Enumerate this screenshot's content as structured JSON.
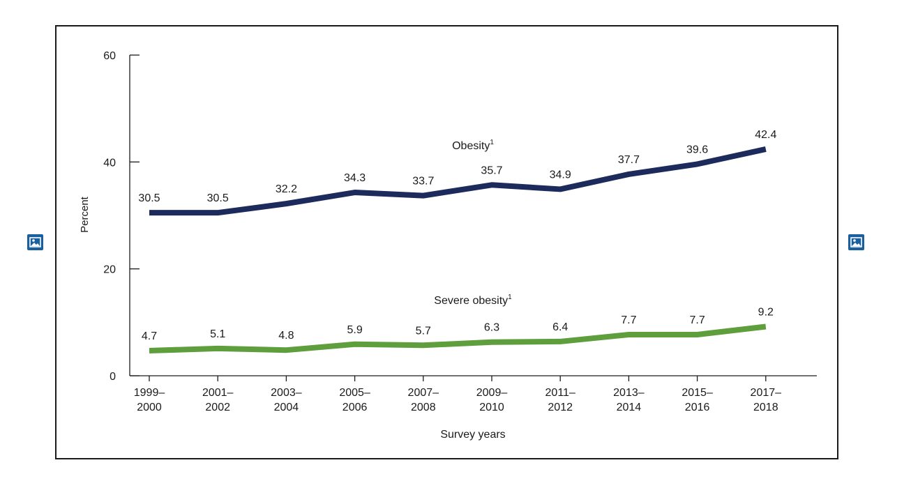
{
  "icons": {
    "left": "broken-image-icon",
    "right": "broken-image-icon",
    "color": "#1a5f9e"
  },
  "chart_data": {
    "type": "line",
    "categories": [
      [
        "1999–",
        "2000"
      ],
      [
        "2001–",
        "2002"
      ],
      [
        "2003–",
        "2004"
      ],
      [
        "2005–",
        "2006"
      ],
      [
        "2007–",
        "2008"
      ],
      [
        "2009–",
        "2010"
      ],
      [
        "2011–",
        "2012"
      ],
      [
        "2013–",
        "2014"
      ],
      [
        "2015–",
        "2016"
      ],
      [
        "2017–",
        "2018"
      ]
    ],
    "series": [
      {
        "name": "Obesity",
        "footnote": "1",
        "color": "#1c2b5c",
        "values": [
          30.5,
          30.5,
          32.2,
          34.3,
          33.7,
          35.7,
          34.9,
          37.7,
          39.6,
          42.4
        ]
      },
      {
        "name": "Severe obesity",
        "footnote": "1",
        "color": "#5e9e3c",
        "values": [
          4.7,
          5.1,
          4.8,
          5.9,
          5.7,
          6.3,
          6.4,
          7.7,
          7.7,
          9.2
        ]
      }
    ],
    "xlabel": "Survey years",
    "ylabel": "Percent",
    "ylim": [
      0,
      60
    ],
    "yticks": [
      0,
      20,
      40,
      60
    ],
    "grid": false,
    "legend": "inline-labels"
  }
}
